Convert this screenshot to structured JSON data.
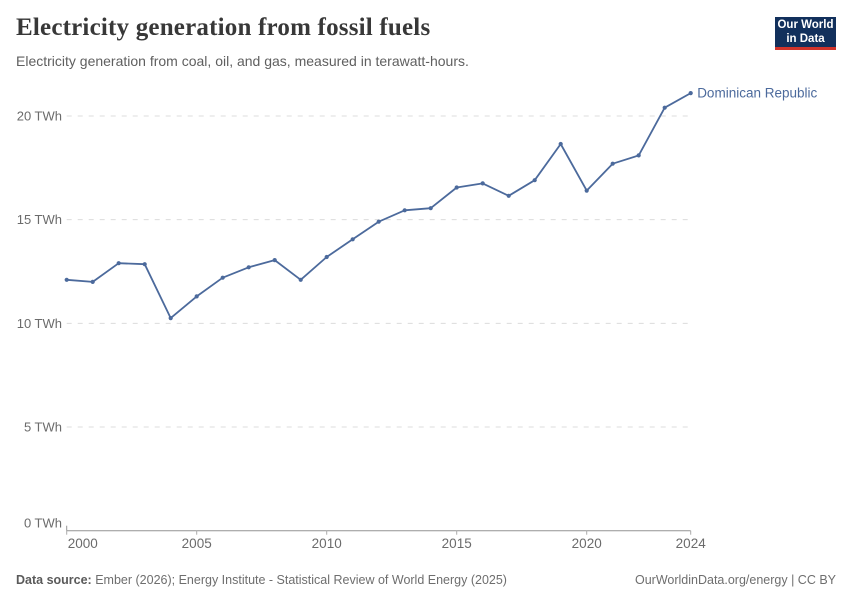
{
  "header": {
    "title": "Electricity generation from fossil fuels",
    "subtitle": "Electricity generation from coal, oil, and gas, measured in terawatt-hours.",
    "logo": {
      "line1": "Our World",
      "line2": "in Data"
    }
  },
  "chart_data": {
    "type": "line",
    "title": "Electricity generation from fossil fuels",
    "xlabel": "",
    "ylabel": "TWh",
    "entity_label": "Dominican Republic",
    "x": [
      2000,
      2001,
      2002,
      2003,
      2004,
      2005,
      2006,
      2007,
      2008,
      2009,
      2010,
      2011,
      2012,
      2013,
      2014,
      2015,
      2016,
      2017,
      2018,
      2019,
      2020,
      2021,
      2022,
      2023,
      2024
    ],
    "series": [
      {
        "name": "Dominican Republic",
        "values": [
          12.1,
          12.0,
          12.9,
          12.85,
          10.25,
          11.3,
          12.2,
          12.7,
          13.05,
          12.1,
          13.2,
          14.05,
          14.9,
          15.45,
          15.55,
          16.55,
          16.75,
          16.15,
          16.9,
          18.65,
          16.4,
          17.7,
          18.1,
          20.4,
          21.1
        ]
      }
    ],
    "y_ticks": [
      0,
      5,
      10,
      15,
      20
    ],
    "y_tick_suffix": " TWh",
    "x_ticks": [
      2000,
      2005,
      2010,
      2015,
      2020,
      2024
    ],
    "ylim": [
      0,
      21.5
    ],
    "xlim": [
      2000,
      2024
    ],
    "grid": "horizontal-dashed",
    "legend_position": "line-end-label",
    "colors": {
      "line": "#4c6a9c",
      "marker": "#4c6a9c",
      "entity_label": "#4c6a9c",
      "gridline": "#dcdcdc",
      "axis": "#949494",
      "tick_text": "#6b6b6b",
      "logo_bg": "#12305c",
      "logo_accent": "#d1332a"
    }
  },
  "footer": {
    "source_label": "Data source:",
    "source_text": "Ember (2026); Energy Institute - Statistical Review of World Energy (2025)",
    "rights": "OurWorldinData.org/energy | CC BY"
  }
}
